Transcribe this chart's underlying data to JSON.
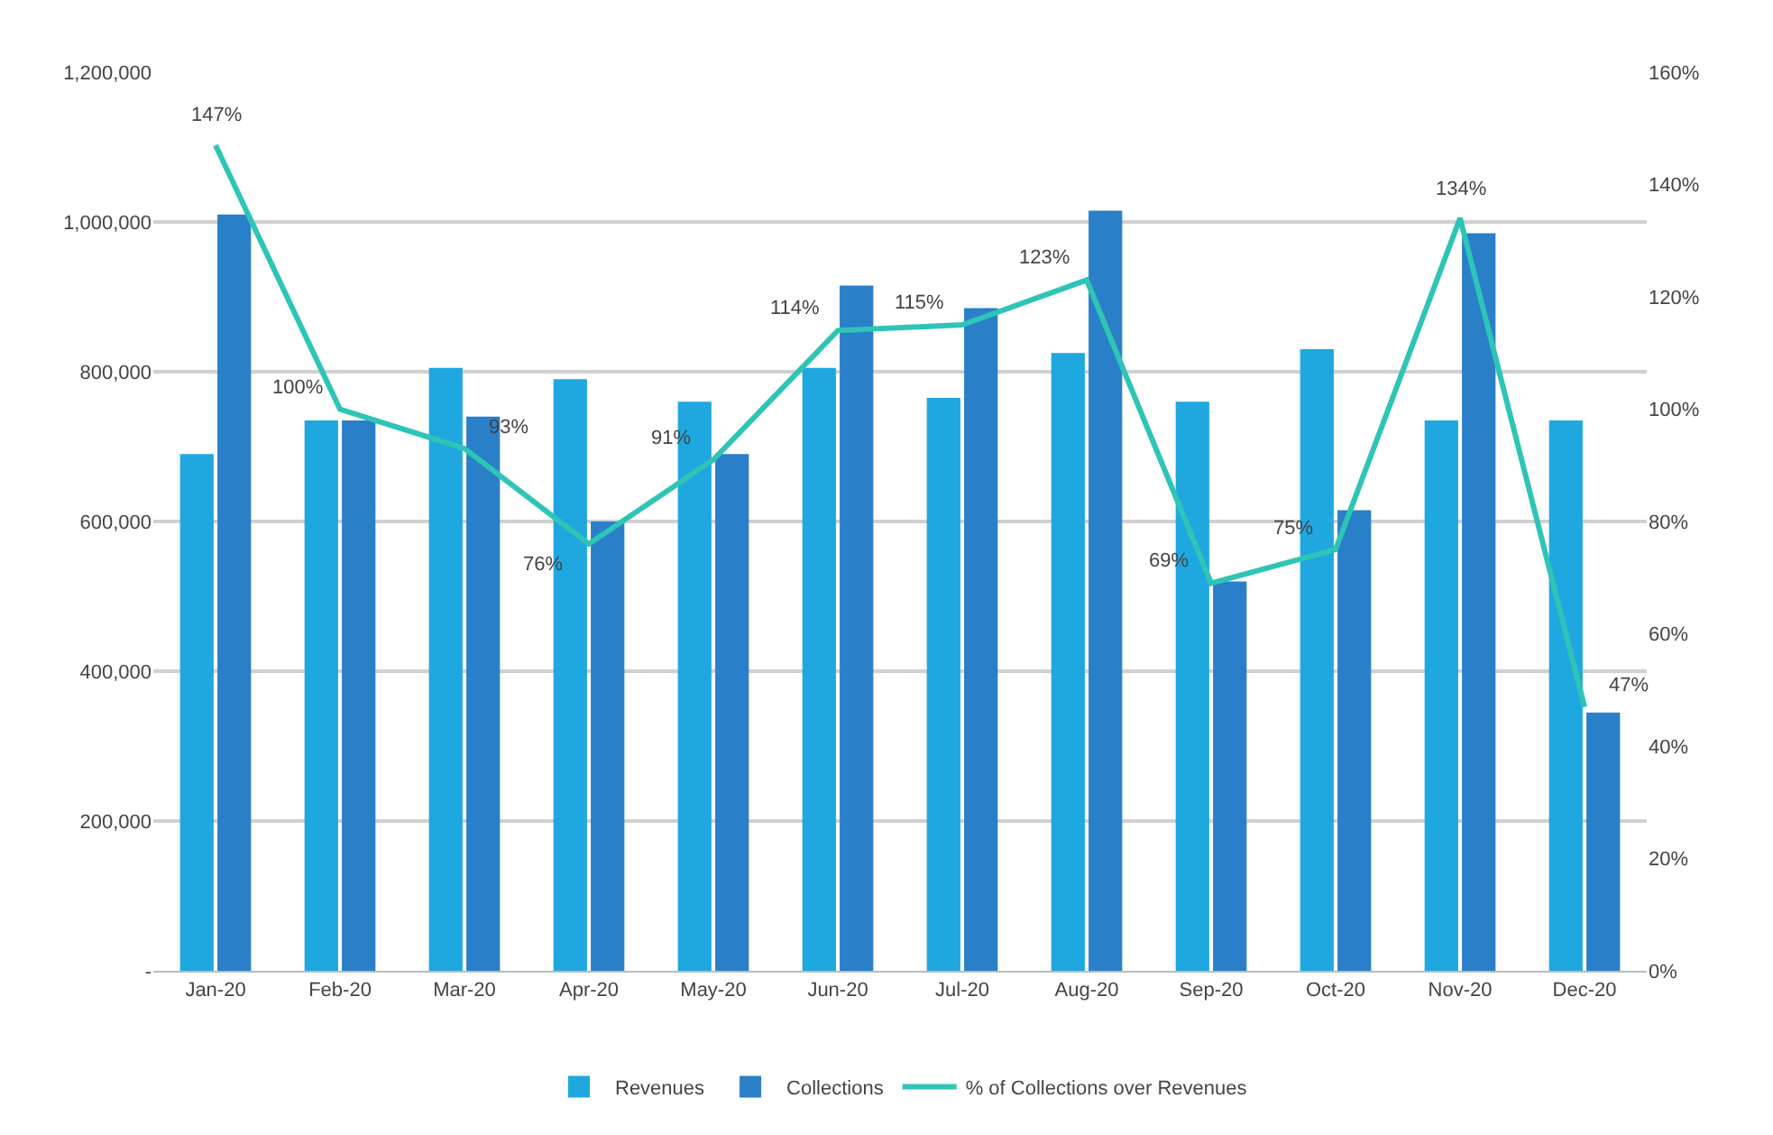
{
  "chart_data": {
    "type": "bar",
    "categories": [
      "Jan-20",
      "Feb-20",
      "Mar-20",
      "Apr-20",
      "May-20",
      "Jun-20",
      "Jul-20",
      "Aug-20",
      "Sep-20",
      "Oct-20",
      "Nov-20",
      "Dec-20"
    ],
    "series": [
      {
        "name": "Revenues",
        "type": "bar",
        "color": "#1fa8e0",
        "values": [
          690000,
          735000,
          805000,
          790000,
          760000,
          805000,
          765000,
          825000,
          760000,
          830000,
          735000,
          735000
        ]
      },
      {
        "name": "Collections",
        "type": "bar",
        "color": "#2a7fc9",
        "values": [
          1010000,
          735000,
          740000,
          600000,
          690000,
          915000,
          885000,
          1015000,
          520000,
          615000,
          985000,
          345000
        ]
      },
      {
        "name": "% of Collections over Revenues",
        "type": "line",
        "axis": "y2",
        "color": "#2ec4b6",
        "values": [
          147,
          100,
          93,
          76,
          91,
          114,
          115,
          123,
          69,
          75,
          134,
          47
        ],
        "value_labels": [
          "147%",
          "100%",
          "93%",
          "76%",
          "91%",
          "114%",
          "115%",
          "123%",
          "69%",
          "75%",
          "134%",
          "47%"
        ]
      }
    ],
    "ylim": [
      0,
      1200000
    ],
    "yticks": [
      {
        "value": 0,
        "label": "-"
      },
      {
        "value": 200000,
        "label": "200,000"
      },
      {
        "value": 400000,
        "label": "400,000"
      },
      {
        "value": 600000,
        "label": "600,000"
      },
      {
        "value": 800000,
        "label": "800,000"
      },
      {
        "value": 1000000,
        "label": "1,000,000"
      },
      {
        "value": 1200000,
        "label": "1,200,000"
      }
    ],
    "y2lim": [
      0,
      160
    ],
    "y2ticks": [
      {
        "value": 0,
        "label": "0%"
      },
      {
        "value": 20,
        "label": "20%"
      },
      {
        "value": 40,
        "label": "40%"
      },
      {
        "value": 60,
        "label": "60%"
      },
      {
        "value": 80,
        "label": "80%"
      },
      {
        "value": 100,
        "label": "100%"
      },
      {
        "value": 120,
        "label": "120%"
      },
      {
        "value": 140,
        "label": "140%"
      },
      {
        "value": 160,
        "label": "160%"
      }
    ],
    "grid": "y",
    "legend": "bottom",
    "marker": "none",
    "line_style": "solid"
  }
}
